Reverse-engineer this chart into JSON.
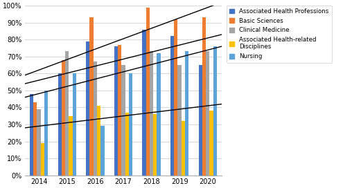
{
  "years": [
    2014,
    2015,
    2016,
    2017,
    2018,
    2019,
    2020
  ],
  "series": {
    "Associated Health Professions": [
      48,
      60,
      79,
      76,
      86,
      82,
      65
    ],
    "Basic Sciences": [
      43,
      68,
      93,
      77,
      99,
      92,
      93
    ],
    "Clinical Medicine": [
      39,
      73,
      67,
      65,
      73,
      65,
      73
    ],
    "Associated Health-related Disciplines": [
      19,
      35,
      41,
      37,
      36,
      32,
      38
    ],
    "Nursing": [
      50,
      60,
      29,
      60,
      72,
      73,
      76
    ]
  },
  "colors": {
    "Associated Health Professions": "#4472C4",
    "Basic Sciences": "#ED7D31",
    "Clinical Medicine": "#A5A5A5",
    "Associated Health-related Disciplines": "#FFC000",
    "Nursing": "#5BA3D9"
  },
  "trend_lines": [
    {
      "x": [
        -0.5,
        6.5
      ],
      "y": [
        59,
        102
      ]
    },
    {
      "x": [
        -0.5,
        6.5
      ],
      "y": [
        54,
        83
      ]
    },
    {
      "x": [
        -0.5,
        6.5
      ],
      "y": [
        46,
        76
      ]
    },
    {
      "x": [
        -0.5,
        6.5
      ],
      "y": [
        28,
        42
      ]
    }
  ],
  "ylim": [
    0,
    100
  ],
  "yticks": [
    0,
    10,
    20,
    30,
    40,
    50,
    60,
    70,
    80,
    90,
    100
  ],
  "ytick_labels": [
    "0%",
    "10%",
    "20%",
    "30%",
    "40%",
    "50%",
    "60%",
    "70%",
    "80%",
    "90%",
    "100%"
  ],
  "background_color": "#FFFFFF",
  "bar_width": 0.13,
  "legend_order": [
    "Associated Health Professions",
    "Basic Sciences",
    "Clinical Medicine",
    "Associated Health-related Disciplines",
    "Nursing"
  ],
  "legend_labels": [
    "Associated Health Professions",
    "Basic Sciences",
    "Clinical Medicine",
    "Associated Health-related\nDisciplines",
    "Nursing"
  ]
}
